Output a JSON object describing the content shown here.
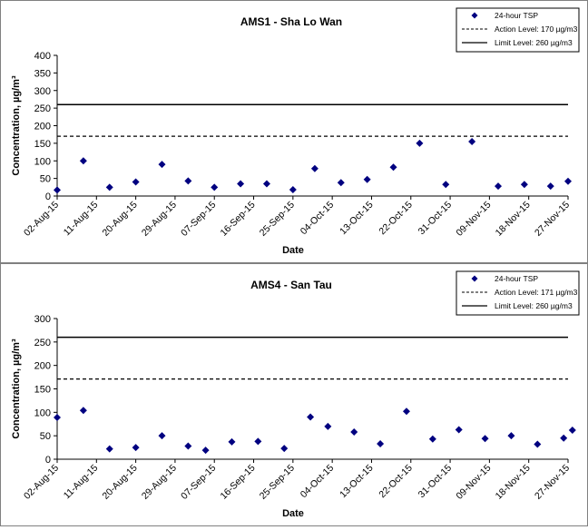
{
  "charts": [
    {
      "type": "scatter",
      "title": "AMS1 - Sha Lo Wan",
      "xlabel": "Date",
      "ylabel": "Concentration, µg/m³",
      "ylim": [
        0,
        400
      ],
      "yticks": [
        0,
        50,
        100,
        150,
        200,
        250,
        300,
        350,
        400
      ],
      "xticks": [
        "02-Aug-15",
        "11-Aug-15",
        "20-Aug-15",
        "29-Aug-15",
        "07-Sep-15",
        "16-Sep-15",
        "25-Sep-15",
        "04-Oct-15",
        "13-Oct-15",
        "22-Oct-15",
        "31-Oct-15",
        "09-Nov-15",
        "18-Nov-15",
        "27-Nov-15"
      ],
      "legend_position": "top-right",
      "legend": [
        "24-hour TSP",
        "Action Level: 170 µg/m3",
        "Limit Level: 260 µg/m3"
      ],
      "action_level": 170,
      "limit_level": 260,
      "series": [
        {
          "name": "24-hour TSP",
          "color": "#000080",
          "x": [
            "2015-08-02",
            "2015-08-08",
            "2015-08-14",
            "2015-08-20",
            "2015-08-26",
            "2015-09-01",
            "2015-09-07",
            "2015-09-13",
            "2015-09-19",
            "2015-09-25",
            "2015-09-30",
            "2015-10-06",
            "2015-10-12",
            "2015-10-18",
            "2015-10-24",
            "2015-10-30",
            "2015-11-05",
            "2015-11-11",
            "2015-11-17",
            "2015-11-23",
            "2015-11-27"
          ],
          "y": [
            17,
            100,
            25,
            40,
            90,
            43,
            25,
            35,
            35,
            18,
            78,
            38,
            47,
            82,
            150,
            33,
            155,
            28,
            33,
            28,
            42
          ]
        }
      ]
    },
    {
      "type": "scatter",
      "title": "AMS4 - San Tau",
      "xlabel": "Date",
      "ylabel": "Concentration, µg/m³",
      "ylim": [
        0,
        300
      ],
      "yticks": [
        0,
        50,
        100,
        150,
        200,
        250,
        300
      ],
      "xticks": [
        "02-Aug-15",
        "11-Aug-15",
        "20-Aug-15",
        "29-Aug-15",
        "07-Sep-15",
        "16-Sep-15",
        "25-Sep-15",
        "04-Oct-15",
        "13-Oct-15",
        "22-Oct-15",
        "31-Oct-15",
        "09-Nov-15",
        "18-Nov-15",
        "27-Nov-15"
      ],
      "legend_position": "top-right",
      "legend": [
        "24-hour TSP",
        "Action Level: 171 µg/m3",
        "Limit Level: 260 µg/m3"
      ],
      "action_level": 171,
      "limit_level": 260,
      "series": [
        {
          "name": "24-hour TSP",
          "color": "#000080",
          "x": [
            "2015-08-02",
            "2015-08-08",
            "2015-08-14",
            "2015-08-20",
            "2015-08-26",
            "2015-09-01",
            "2015-09-05",
            "2015-09-11",
            "2015-09-17",
            "2015-09-23",
            "2015-09-29",
            "2015-10-03",
            "2015-10-09",
            "2015-10-15",
            "2015-10-21",
            "2015-10-27",
            "2015-11-02",
            "2015-11-08",
            "2015-11-14",
            "2015-11-20",
            "2015-11-26",
            "2015-11-28"
          ],
          "y": [
            89,
            104,
            22,
            25,
            50,
            28,
            19,
            37,
            38,
            23,
            90,
            70,
            58,
            33,
            102,
            43,
            63,
            44,
            50,
            32,
            45,
            62
          ]
        }
      ]
    }
  ]
}
